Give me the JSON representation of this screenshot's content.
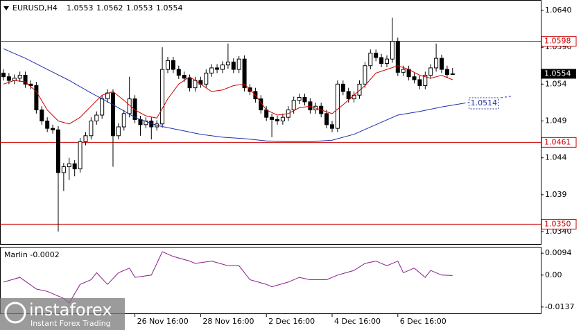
{
  "chart_data": {
    "type": "candlestick",
    "symbol": "EURUSD,H4",
    "xlim": [
      -0.63,
      98.1
    ],
    "ylim": [
      1.03231,
      1.06541
    ],
    "yticks": [
      {
        "value": 1.064,
        "label": "1.0640"
      },
      {
        "value": 1.059,
        "label": "1.0590"
      },
      1.054,
      1.049,
      1.044,
      1.039,
      {
        "value": 1.034,
        "label": "1.0340"
      }
    ],
    "xticks": [
      {
        "value": 24,
        "label": "26 Nov 16:00"
      },
      {
        "value": 36,
        "label": "28 Nov 16:00"
      },
      {
        "value": 48,
        "label": "2 Dec 16:00"
      },
      {
        "value": 60,
        "label": "4 Dec 16:00"
      },
      {
        "value": 72,
        "label": "6 Dec 16:00"
      }
    ],
    "ohlc": [
      [
        1.0555,
        1.056,
        1.0545,
        1.055
      ],
      [
        1.055,
        1.0555,
        1.054,
        1.0545
      ],
      [
        1.0545,
        1.0553,
        1.054,
        1.0548
      ],
      [
        1.0548,
        1.0557,
        1.0543,
        1.0552
      ],
      [
        1.0552,
        1.0557,
        1.0535,
        1.054
      ],
      [
        1.054,
        1.0545,
        1.0533,
        1.0538
      ],
      [
        1.0538,
        1.0543,
        1.05,
        1.0505
      ],
      [
        1.0505,
        1.051,
        1.0485,
        1.049
      ],
      [
        1.049,
        1.0495,
        1.0475,
        1.048
      ],
      [
        1.048,
        1.0485,
        1.0473,
        1.0478
      ],
      [
        1.0478,
        1.0483,
        1.034,
        1.042
      ],
      [
        1.042,
        1.0433,
        1.0395,
        1.0428
      ],
      [
        1.0428,
        1.044,
        1.041,
        1.0432
      ],
      [
        1.0432,
        1.0437,
        1.0415,
        1.0425
      ],
      [
        1.0425,
        1.0467,
        1.042,
        1.0462
      ],
      [
        1.0462,
        1.0475,
        1.0457,
        1.047
      ],
      [
        1.047,
        1.0495,
        1.0465,
        1.049
      ],
      [
        1.049,
        1.0503,
        1.0485,
        1.0498
      ],
      [
        1.0498,
        1.0525,
        1.0493,
        1.052
      ],
      [
        1.052,
        1.0533,
        1.0515,
        1.0528
      ],
      [
        1.0528,
        1.0533,
        1.0428,
        1.047
      ],
      [
        1.047,
        1.0487,
        1.0465,
        1.0482
      ],
      [
        1.0482,
        1.0505,
        1.0477,
        1.05
      ],
      [
        1.05,
        1.055,
        1.0495,
        1.052
      ],
      [
        1.052,
        1.0525,
        1.0487,
        1.0492
      ],
      [
        1.0492,
        1.0497,
        1.047,
        1.0485
      ],
      [
        1.0485,
        1.0495,
        1.048,
        1.049
      ],
      [
        1.049,
        1.0495,
        1.0465,
        1.0482
      ],
      [
        1.0482,
        1.0491,
        1.0477,
        1.0486
      ],
      [
        1.0486,
        1.059,
        1.0481,
        1.056
      ],
      [
        1.056,
        1.0577,
        1.0555,
        1.0572
      ],
      [
        1.0572,
        1.0577,
        1.0555,
        1.056
      ],
      [
        1.056,
        1.0565,
        1.0547,
        1.0552
      ],
      [
        1.0552,
        1.0557,
        1.0543,
        1.0548
      ],
      [
        1.0548,
        1.0553,
        1.053,
        1.0535
      ],
      [
        1.0535,
        1.055,
        1.053,
        1.0545
      ],
      [
        1.0545,
        1.055,
        1.0535,
        1.054
      ],
      [
        1.054,
        1.056,
        1.0535,
        1.0555
      ],
      [
        1.0555,
        1.0567,
        1.055,
        1.0562
      ],
      [
        1.0562,
        1.0567,
        1.0555,
        1.056
      ],
      [
        1.056,
        1.0571,
        1.0555,
        1.0566
      ],
      [
        1.0566,
        1.0595,
        1.0561,
        1.057
      ],
      [
        1.057,
        1.0575,
        1.0555,
        1.056
      ],
      [
        1.056,
        1.0578,
        1.0555,
        1.0574
      ],
      [
        1.0574,
        1.0579,
        1.053,
        1.0535
      ],
      [
        1.0535,
        1.054,
        1.0525,
        1.053
      ],
      [
        1.053,
        1.0535,
        1.0515,
        1.052
      ],
      [
        1.052,
        1.0525,
        1.05,
        1.0505
      ],
      [
        1.0505,
        1.051,
        1.049,
        1.0495
      ],
      [
        1.0495,
        1.05,
        1.0468,
        1.0492
      ],
      [
        1.0492,
        1.0497,
        1.0485,
        1.049
      ],
      [
        1.049,
        1.05,
        1.0485,
        1.0495
      ],
      [
        1.0495,
        1.051,
        1.049,
        1.0505
      ],
      [
        1.0505,
        1.0523,
        1.05,
        1.0518
      ],
      [
        1.0518,
        1.0527,
        1.0513,
        1.0522
      ],
      [
        1.0522,
        1.0527,
        1.0511,
        1.0516
      ],
      [
        1.0516,
        1.0521,
        1.05,
        1.0505
      ],
      [
        1.0505,
        1.0515,
        1.05,
        1.051
      ],
      [
        1.051,
        1.0515,
        1.0495,
        1.05
      ],
      [
        1.05,
        1.0505,
        1.048,
        1.0485
      ],
      [
        1.0485,
        1.049,
        1.0475,
        1.048
      ],
      [
        1.048,
        1.0545,
        1.0475,
        1.054
      ],
      [
        1.054,
        1.0545,
        1.0525,
        1.053
      ],
      [
        1.053,
        1.0535,
        1.0515,
        1.052
      ],
      [
        1.052,
        1.053,
        1.0515,
        1.0525
      ],
      [
        1.0525,
        1.0545,
        1.052,
        1.054
      ],
      [
        1.054,
        1.057,
        1.0535,
        1.0565
      ],
      [
        1.0565,
        1.0587,
        1.056,
        1.0582
      ],
      [
        1.0582,
        1.0587,
        1.0571,
        1.0576
      ],
      [
        1.0576,
        1.0581,
        1.0563,
        1.0568
      ],
      [
        1.0568,
        1.0579,
        1.0563,
        1.0574
      ],
      [
        1.0574,
        1.063,
        1.0569,
        1.0598
      ],
      [
        1.0598,
        1.0603,
        1.0551,
        1.0556
      ],
      [
        1.0556,
        1.0565,
        1.0551,
        1.056
      ],
      [
        1.056,
        1.0565,
        1.0545,
        1.055
      ],
      [
        1.055,
        1.0555,
        1.0541,
        1.0546
      ],
      [
        1.0546,
        1.0551,
        1.0533,
        1.0538
      ],
      [
        1.0538,
        1.0557,
        1.0533,
        1.0552
      ],
      [
        1.0552,
        1.0567,
        1.0547,
        1.0562
      ],
      [
        1.0562,
        1.0595,
        1.0557,
        1.0575
      ],
      [
        1.0575,
        1.058,
        1.0555,
        1.056
      ],
      [
        1.056,
        1.0565,
        1.0548,
        1.0553
      ],
      [
        1.0553,
        1.0562,
        1.0553,
        1.0554
      ]
    ],
    "ma_fast": {
      "color": "#cc0000",
      "x": [
        0,
        2,
        4,
        6,
        8,
        10,
        12,
        14,
        16,
        18,
        20,
        22,
        24,
        26,
        28,
        30,
        32,
        34,
        36,
        38,
        40,
        42,
        44,
        46,
        48,
        50,
        52,
        54,
        56,
        58,
        60,
        62,
        64,
        66,
        68,
        70,
        72,
        74,
        76,
        78,
        80,
        82
      ],
      "values": [
        1.054,
        1.0545,
        1.0543,
        1.053,
        1.0505,
        1.049,
        1.0486,
        1.0495,
        1.051,
        1.0525,
        1.053,
        1.0518,
        1.0505,
        1.0497,
        1.0494,
        1.052,
        1.054,
        1.055,
        1.054,
        1.053,
        1.0532,
        1.0538,
        1.054,
        1.0525,
        1.0505,
        1.0498,
        1.05,
        1.0508,
        1.051,
        1.0505,
        1.05,
        1.0512,
        1.0525,
        1.0538,
        1.0555,
        1.056,
        1.0565,
        1.056,
        1.0552,
        1.0548,
        1.0552,
        1.0546
      ]
    },
    "ma_slow": {
      "color": "#1f2fa8",
      "x": [
        0,
        4,
        8,
        12,
        16,
        20,
        24,
        28,
        32,
        36,
        40,
        44,
        48,
        52,
        56,
        60,
        64,
        68,
        72,
        76,
        80,
        84
      ],
      "values": [
        1.0588,
        1.0575,
        1.056,
        1.0545,
        1.0528,
        1.0512,
        1.0495,
        1.0484,
        1.0478,
        1.0472,
        1.0468,
        1.0466,
        1.0463,
        1.0462,
        1.0462,
        1.0464,
        1.0472,
        1.0485,
        1.0498,
        1.0503,
        1.0509,
        1.0514
      ]
    },
    "ma_slow_projection": {
      "x": [
        84,
        93
      ],
      "values": [
        1.0514,
        1.0524
      ]
    },
    "levels": [
      1.0598,
      1.0461,
      {
        "value": 1.035,
        "label": "1.0350"
      }
    ],
    "level_color": "#cc0000",
    "oscillator": {
      "name": "Marlin",
      "color": "#8b1a8b",
      "ylim": [
        -0.01643,
        0.01213
      ],
      "yticks": [
        0.0094,
        {
          "value": 0,
          "label": "0.00"
        },
        -0.0137
      ],
      "x": [
        0,
        3,
        6,
        8,
        11,
        12,
        14,
        16,
        17,
        19,
        21,
        23,
        24,
        27,
        29,
        31,
        34,
        35,
        38,
        41,
        43,
        45,
        48,
        49,
        52,
        54,
        56,
        59,
        61,
        64,
        66,
        68,
        70,
        72,
        73,
        75,
        77,
        78,
        80,
        82
      ],
      "values": [
        -0.003,
        -0.001,
        -0.006,
        -0.007,
        -0.01,
        -0.012,
        -0.004,
        -0.002,
        0.001,
        -0.004,
        0.001,
        0.003,
        -0.001,
        0.0,
        0.01,
        0.008,
        0.006,
        0.005,
        0.006,
        0.004,
        0.004,
        -0.002,
        -0.004,
        -0.005,
        -0.003,
        -0.001,
        -0.002,
        -0.002,
        0.0,
        0.002,
        0.005,
        0.006,
        0.004,
        0.006,
        0.001,
        0.003,
        -0.001,
        0.002,
        0.0,
        -0.0002
      ]
    },
    "watermark": {
      "brand": "instaforex",
      "tagline": "Instant Forex Trading"
    }
  }
}
